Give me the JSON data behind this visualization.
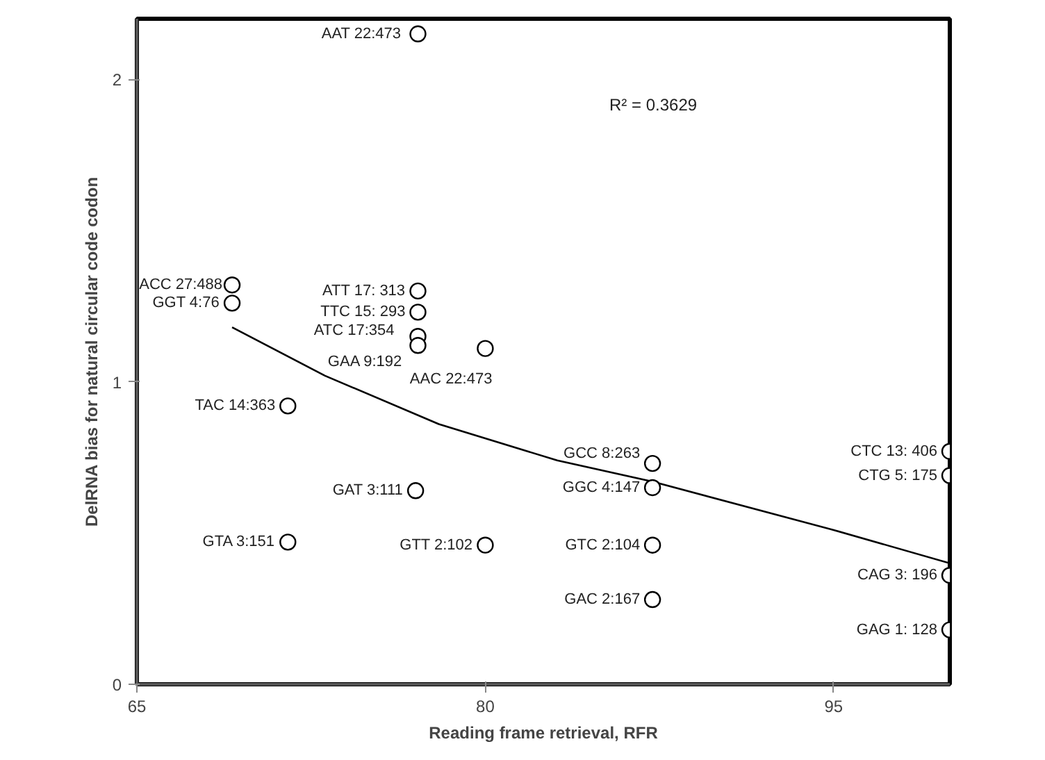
{
  "chart_data": {
    "type": "scatter",
    "xlabel": "Reading frame retrieval, RFR",
    "ylabel": "DelRNA bias for natural circular code codon",
    "xlim": [
      65,
      100
    ],
    "xticks": [
      65,
      80,
      95
    ],
    "ylim": [
      0,
      2.2
    ],
    "yticks": [
      0,
      1,
      2
    ],
    "grid": false,
    "series": [
      {
        "color": "#000000",
        "marker": "circle",
        "x": [
          77.1,
          69.1,
          69.1,
          77.1,
          77.1,
          77.1,
          77.1,
          80,
          71.5,
          87.2,
          87.2,
          77,
          100,
          100,
          71.5,
          80,
          87.2,
          100,
          87.2,
          100
        ],
        "values": [
          2.15,
          1.32,
          1.26,
          1.3,
          1.23,
          1.15,
          1.12,
          1.11,
          0.92,
          0.73,
          0.65,
          0.64,
          0.77,
          0.69,
          0.47,
          0.46,
          0.46,
          0.36,
          0.28,
          0.18
        ]
      },
      {
        "type": "line",
        "color": "#000000",
        "line_style": "solid",
        "x": [
          69.1,
          73.1,
          78,
          83.1,
          87.2,
          95,
          100
        ],
        "values": [
          1.18,
          1.02,
          0.86,
          0.74,
          0.67,
          0.51,
          0.4
        ]
      }
    ],
    "annotations": [
      {
        "text": "AAT  22:473",
        "x": 77.1,
        "y": 2.15
      },
      {
        "text": "ACC 27:488",
        "x": 69.1,
        "y": 1.32
      },
      {
        "text": "GGT 4:76",
        "x": 69.1,
        "y": 1.26
      },
      {
        "text": "ATT 17: 313",
        "x": 77.1,
        "y": 1.3
      },
      {
        "text": "TTC 15: 293",
        "x": 77.1,
        "y": 1.23
      },
      {
        "text": "ATC 17:354",
        "x": 77.1,
        "y": 1.15
      },
      {
        "text": "GAA 9:192",
        "x": 77.1,
        "y": 1.12
      },
      {
        "text": "AAC 22:473",
        "x": 80,
        "y": 1.11
      },
      {
        "text": "TAC 14:363",
        "x": 71.5,
        "y": 0.92
      },
      {
        "text": "GCC 8:263",
        "x": 87.2,
        "y": 0.73
      },
      {
        "text": "GGC 4:147",
        "x": 87.2,
        "y": 0.65
      },
      {
        "text": "GAT 3:111",
        "x": 77,
        "y": 0.64
      },
      {
        "text": "CTC 13: 406",
        "x": 100,
        "y": 0.77
      },
      {
        "text": "CTG 5: 175",
        "x": 100,
        "y": 0.69
      },
      {
        "text": "GTA 3:151",
        "x": 71.5,
        "y": 0.47
      },
      {
        "text": "GTT 2:102",
        "x": 80,
        "y": 0.46
      },
      {
        "text": "GTC 2:104",
        "x": 87.2,
        "y": 0.46
      },
      {
        "text": "CAG 3: 196",
        "x": 100,
        "y": 0.36
      },
      {
        "text": "GAC 2:167",
        "x": 87.2,
        "y": 0.28
      },
      {
        "text": "GAG 1: 128",
        "x": 100,
        "y": 0.18
      },
      "R² = 0.3629"
    ]
  }
}
